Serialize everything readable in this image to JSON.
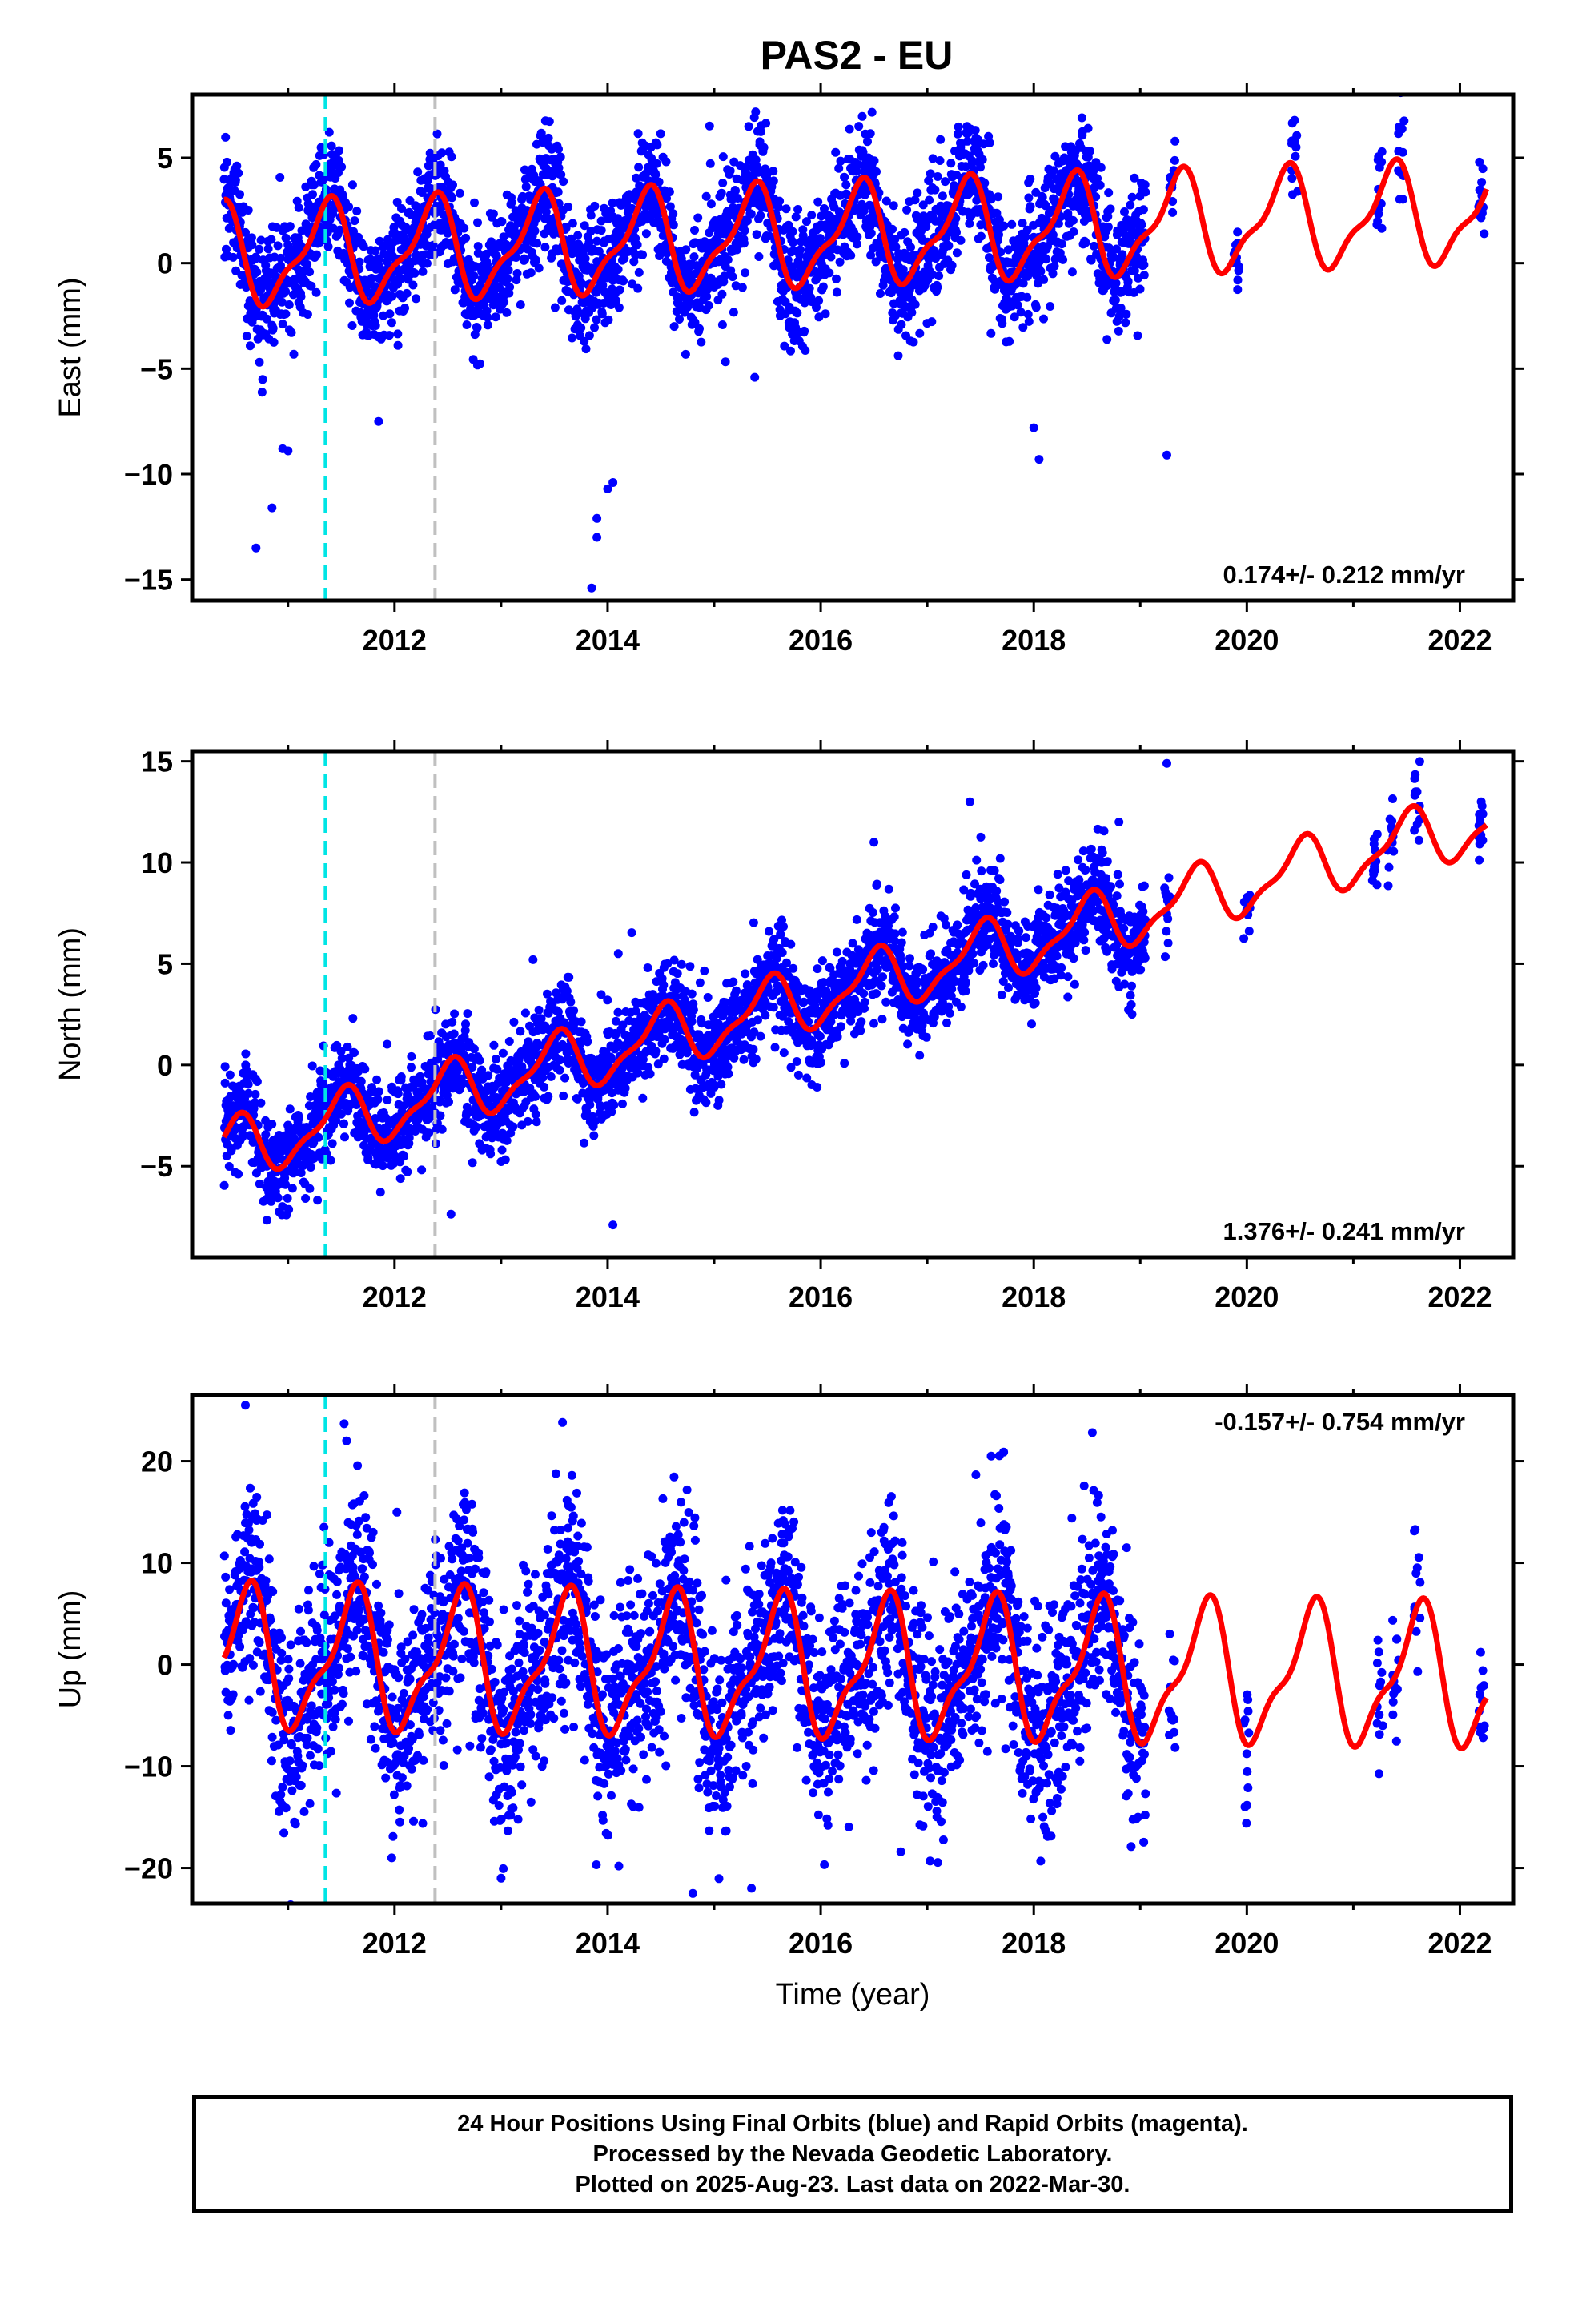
{
  "title": "PAS2 - EU",
  "colors": {
    "data_points": "#0000ff",
    "model_line": "#ff0000",
    "event_line_1": "#00e5e5",
    "event_line_2": "#c0c0c0",
    "frame": "#000000"
  },
  "footer": {
    "line1": "24 Hour Positions Using Final Orbits (blue) and Rapid Orbits (magenta).",
    "line2": "Processed by the Nevada Geodetic Laboratory.",
    "line3": "Plotted on 2025-Aug-23. Last data on 2022-Mar-30."
  },
  "chart_data": [
    {
      "type": "scatter",
      "ylabel": "East (mm)",
      "xlabel": "",
      "xlim": [
        2010.1,
        2022.5
      ],
      "ylim": [
        -16,
        8
      ],
      "x_ticks": [
        "2012",
        "2014",
        "2016",
        "2018",
        "2020",
        "2022"
      ],
      "y_ticks": [
        "5",
        "0",
        "−5",
        "−10",
        "−15"
      ],
      "y_tick_values": [
        5,
        0,
        -5,
        -10,
        -15
      ],
      "rate_label": "0.174+/- 0.212 mm/yr",
      "rate_label_position": "bottom-right",
      "event_lines_year": [
        2011.35,
        2012.38
      ],
      "data_span": [
        2010.4,
        2019.05
      ],
      "sparse_years": [
        2019.3,
        2019.9,
        2020.45,
        2021.25,
        2021.45,
        2022.2
      ],
      "model": {
        "offset": 0.3,
        "slope_mm_per_yr": 0.174,
        "amplitude": 2.2,
        "phase_year": 2011.35
      },
      "noise_sd": 1.4,
      "outliers": [
        [
          2010.7,
          -13.5
        ],
        [
          2010.85,
          -11.6
        ],
        [
          2010.95,
          -8.8
        ],
        [
          2011.0,
          -8.9
        ],
        [
          2013.85,
          -15.4
        ],
        [
          2013.9,
          -13.0
        ],
        [
          2014.0,
          -10.7
        ],
        [
          2014.05,
          -10.4
        ],
        [
          2013.9,
          -12.1
        ],
        [
          2018.0,
          -7.8
        ],
        [
          2018.05,
          -9.3
        ],
        [
          2019.25,
          -9.1
        ],
        [
          2011.85,
          -7.5
        ]
      ]
    },
    {
      "type": "scatter",
      "ylabel": "North (mm)",
      "xlabel": "",
      "xlim": [
        2010.1,
        2022.5
      ],
      "ylim": [
        -9.5,
        15.5
      ],
      "x_ticks": [
        "2012",
        "2014",
        "2016",
        "2018",
        "2020",
        "2022"
      ],
      "y_ticks": [
        "15",
        "10",
        "5",
        "0",
        "−5"
      ],
      "y_tick_values": [
        15,
        10,
        5,
        0,
        -5
      ],
      "rate_label": "1.376+/- 0.241 mm/yr",
      "rate_label_position": "bottom-right",
      "event_lines_year": [
        2011.35,
        2012.38
      ],
      "data_span": [
        2010.4,
        2019.05
      ],
      "sparse_years": [
        2019.25,
        2020.0,
        2021.2,
        2021.35,
        2021.6,
        2022.2
      ],
      "model": {
        "offset": -4.3,
        "slope_mm_per_yr": 1.376,
        "amplitude": 1.4,
        "phase_year": 2011.5
      },
      "noise_sd": 1.2,
      "outliers": [
        [
          2013.3,
          5.2
        ],
        [
          2014.1,
          5.5
        ],
        [
          2017.4,
          13.0
        ],
        [
          2019.25,
          14.9
        ],
        [
          2022.2,
          13.0
        ],
        [
          2018.8,
          12.0
        ],
        [
          2016.5,
          11.0
        ],
        [
          2014.05,
          -7.9
        ]
      ]
    },
    {
      "type": "scatter",
      "ylabel": "Up (mm)",
      "xlabel": "Time (year)",
      "xlim": [
        2010.1,
        2022.5
      ],
      "ylim": [
        -23.5,
        26.5
      ],
      "x_ticks": [
        "2012",
        "2014",
        "2016",
        "2018",
        "2020",
        "2022"
      ],
      "y_ticks": [
        "20",
        "10",
        "0",
        "−10",
        "−20"
      ],
      "y_tick_values": [
        20,
        10,
        0,
        -10,
        -20
      ],
      "rate_label": "-0.157+/- 0.754 mm/yr",
      "rate_label_position": "top-right",
      "event_lines_year": [
        2011.35,
        2012.38
      ],
      "data_span": [
        2010.4,
        2019.05
      ],
      "sparse_years": [
        2019.3,
        2020.0,
        2021.25,
        2021.4,
        2021.6,
        2022.2
      ],
      "model": {
        "offset": 0.5,
        "slope_mm_per_yr": -0.157,
        "amplitude": 6.3,
        "phase_year": 2011.6
      },
      "noise_sd": 5.0,
      "outliers": [
        [
          2010.6,
          25.5
        ],
        [
          2011.55,
          22.0
        ],
        [
          2014.8,
          -22.5
        ],
        [
          2015.35,
          -22.0
        ],
        [
          2013.0,
          -21.0
        ],
        [
          2018.55,
          22.8
        ],
        [
          2017.6,
          20.5
        ]
      ]
    }
  ]
}
